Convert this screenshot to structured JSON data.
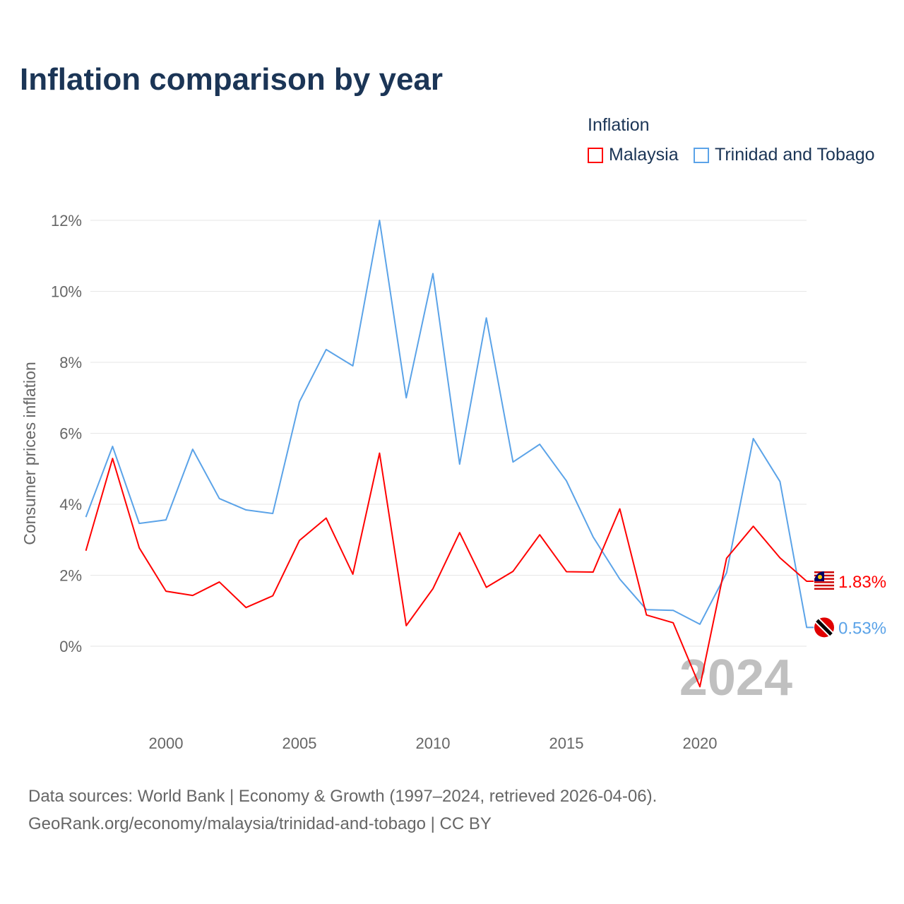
{
  "chart_data": {
    "type": "line",
    "title": "Inflation comparison by year",
    "ylabel": "Consumer prices inflation",
    "xlabel": "",
    "legend_title": "Inflation",
    "legend_position": "top-right",
    "ylim": [
      -2,
      12
    ],
    "xlim": [
      1997,
      2024
    ],
    "yticks": [
      0,
      2,
      4,
      6,
      8,
      10,
      12
    ],
    "ytick_labels": [
      "0%",
      "2%",
      "4%",
      "6%",
      "8%",
      "10%",
      "12%"
    ],
    "xticks": [
      2000,
      2005,
      2010,
      2015,
      2020
    ],
    "xtick_labels": [
      "2000",
      "2005",
      "2010",
      "2015",
      "2020"
    ],
    "grid": true,
    "year_watermark": "2024",
    "x": [
      1997,
      1998,
      1999,
      2000,
      2001,
      2002,
      2003,
      2004,
      2005,
      2006,
      2007,
      2008,
      2009,
      2010,
      2011,
      2012,
      2013,
      2014,
      2015,
      2016,
      2017,
      2018,
      2019,
      2020,
      2021,
      2022,
      2023,
      2024
    ],
    "series": [
      {
        "name": "Malaysia",
        "color": "#ff0000",
        "end_label": "1.83%",
        "values": [
          2.69,
          5.29,
          2.77,
          1.55,
          1.43,
          1.81,
          1.09,
          1.42,
          2.98,
          3.61,
          2.03,
          5.44,
          0.58,
          1.62,
          3.2,
          1.66,
          2.11,
          3.14,
          2.1,
          2.09,
          3.87,
          0.88,
          0.66,
          -1.14,
          2.48,
          3.38,
          2.49,
          1.83
        ]
      },
      {
        "name": "Trinidad and Tobago",
        "color": "#5ba3e8",
        "end_label": "0.53%",
        "values": [
          3.64,
          5.63,
          3.46,
          3.56,
          5.55,
          4.16,
          3.84,
          3.74,
          6.89,
          8.36,
          7.9,
          12.0,
          7.0,
          10.5,
          5.13,
          9.25,
          5.19,
          5.69,
          4.66,
          3.08,
          1.89,
          1.03,
          1.01,
          0.62,
          2.07,
          5.85,
          4.64,
          0.53
        ]
      }
    ]
  },
  "footer": {
    "line1": "Data sources: World Bank | Economy & Growth (1997–2024, retrieved 2026-04-06).",
    "line2": "GeoRank.org/economy/malaysia/trinidad-and-tobago | CC BY"
  }
}
